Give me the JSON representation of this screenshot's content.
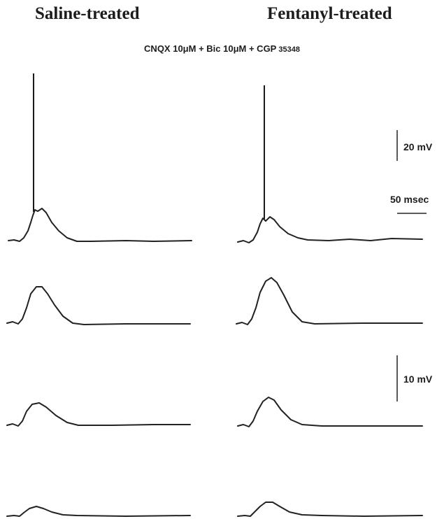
{
  "headings": {
    "left": "Saline-treated",
    "right": "Fentanyl-treated"
  },
  "condition": {
    "main": "CNQX 10μM + Bic 10μM + CGP",
    "number": "35348"
  },
  "scale_bars": {
    "voltage_top": "20 mV",
    "time": "50 msec",
    "voltage_bottom": "10 mV"
  },
  "colors": {
    "trace": "#222222",
    "background": "#ffffff"
  }
}
